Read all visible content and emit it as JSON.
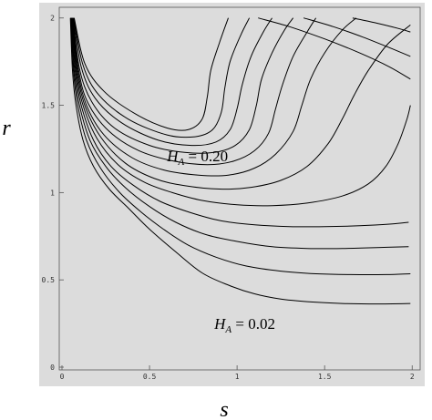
{
  "chart_data": {
    "type": "line",
    "xlabel": "s",
    "ylabel": "r",
    "xlim": [
      0,
      2.03
    ],
    "ylim": [
      0,
      2.03
    ],
    "x_ticks": [
      {
        "value": 0,
        "label": "0"
      },
      {
        "value": 0.5,
        "label": "0.5"
      },
      {
        "value": 1,
        "label": "1"
      },
      {
        "value": 1.5,
        "label": "1.5"
      },
      {
        "value": 2,
        "label": "2"
      }
    ],
    "y_ticks": [
      {
        "value": 0,
        "label": "0"
      },
      {
        "value": 0.5,
        "label": "0.5"
      },
      {
        "value": 1,
        "label": "1"
      },
      {
        "value": 1.5,
        "label": "1.5"
      },
      {
        "value": 2,
        "label": "2"
      }
    ],
    "background_color": "#dcdcdc",
    "line_color": "#000000",
    "grid": false,
    "annotations": [
      {
        "italic": "H",
        "sub": "A",
        "rest": " = 0.20",
        "x": 0.6,
        "y": 1.18
      },
      {
        "italic": "H",
        "sub": "A",
        "rest": " = 0.02",
        "x": 0.87,
        "y": 0.22
      }
    ],
    "series": [
      {
        "points": [
          [
            0.048,
            2.0
          ],
          [
            0.06,
            1.7
          ],
          [
            0.08,
            1.5
          ],
          [
            0.12,
            1.3
          ],
          [
            0.18,
            1.15
          ],
          [
            0.27,
            1.02
          ],
          [
            0.38,
            0.91
          ],
          [
            0.5,
            0.79
          ],
          [
            0.65,
            0.66
          ],
          [
            0.8,
            0.54
          ],
          [
            0.95,
            0.47
          ],
          [
            1.1,
            0.42
          ],
          [
            1.25,
            0.39
          ],
          [
            1.4,
            0.375
          ],
          [
            1.6,
            0.365
          ],
          [
            1.8,
            0.362
          ],
          [
            1.99,
            0.365
          ]
        ]
      },
      {
        "points": [
          [
            0.05,
            2.0
          ],
          [
            0.065,
            1.7
          ],
          [
            0.09,
            1.5
          ],
          [
            0.14,
            1.3
          ],
          [
            0.22,
            1.14
          ],
          [
            0.33,
            1.0
          ],
          [
            0.45,
            0.89
          ],
          [
            0.58,
            0.79
          ],
          [
            0.72,
            0.7
          ],
          [
            0.88,
            0.63
          ],
          [
            1.05,
            0.58
          ],
          [
            1.25,
            0.55
          ],
          [
            1.45,
            0.535
          ],
          [
            1.65,
            0.53
          ],
          [
            1.85,
            0.53
          ],
          [
            1.99,
            0.535
          ]
        ]
      },
      {
        "points": [
          [
            0.052,
            2.0
          ],
          [
            0.07,
            1.7
          ],
          [
            0.1,
            1.5
          ],
          [
            0.16,
            1.3
          ],
          [
            0.25,
            1.15
          ],
          [
            0.36,
            1.03
          ],
          [
            0.5,
            0.92
          ],
          [
            0.65,
            0.83
          ],
          [
            0.82,
            0.76
          ],
          [
            1.0,
            0.72
          ],
          [
            1.2,
            0.69
          ],
          [
            1.4,
            0.68
          ],
          [
            1.6,
            0.68
          ],
          [
            1.8,
            0.685
          ],
          [
            1.98,
            0.69
          ]
        ]
      },
      {
        "points": [
          [
            0.054,
            2.0
          ],
          [
            0.075,
            1.7
          ],
          [
            0.11,
            1.5
          ],
          [
            0.18,
            1.3
          ],
          [
            0.28,
            1.15
          ],
          [
            0.41,
            1.04
          ],
          [
            0.56,
            0.95
          ],
          [
            0.72,
            0.89
          ],
          [
            0.9,
            0.84
          ],
          [
            1.1,
            0.815
          ],
          [
            1.3,
            0.805
          ],
          [
            1.5,
            0.805
          ],
          [
            1.7,
            0.81
          ],
          [
            1.88,
            0.82
          ],
          [
            1.98,
            0.83
          ]
        ]
      },
      {
        "points": [
          [
            0.056,
            2.0
          ],
          [
            0.08,
            1.7
          ],
          [
            0.12,
            1.5
          ],
          [
            0.2,
            1.31
          ],
          [
            0.32,
            1.16
          ],
          [
            0.47,
            1.06
          ],
          [
            0.63,
            1.0
          ],
          [
            0.8,
            0.955
          ],
          [
            1.0,
            0.93
          ],
          [
            1.2,
            0.925
          ],
          [
            1.4,
            0.94
          ],
          [
            1.6,
            0.98
          ],
          [
            1.75,
            1.05
          ],
          [
            1.85,
            1.15
          ],
          [
            1.92,
            1.28
          ],
          [
            1.97,
            1.42
          ],
          [
            1.99,
            1.5
          ]
        ]
      },
      {
        "points": [
          [
            0.058,
            2.0
          ],
          [
            0.085,
            1.7
          ],
          [
            0.13,
            1.5
          ],
          [
            0.22,
            1.32
          ],
          [
            0.36,
            1.17
          ],
          [
            0.53,
            1.08
          ],
          [
            0.7,
            1.04
          ],
          [
            0.9,
            1.02
          ],
          [
            1.08,
            1.03
          ],
          [
            1.25,
            1.07
          ],
          [
            1.4,
            1.15
          ],
          [
            1.52,
            1.28
          ],
          [
            1.6,
            1.42
          ],
          [
            1.67,
            1.56
          ],
          [
            1.75,
            1.7
          ],
          [
            1.86,
            1.85
          ],
          [
            1.99,
            1.96
          ]
        ]
      },
      {
        "points": [
          [
            0.06,
            2.0
          ],
          [
            0.09,
            1.7
          ],
          [
            0.14,
            1.5
          ],
          [
            0.24,
            1.33
          ],
          [
            0.4,
            1.2
          ],
          [
            0.58,
            1.13
          ],
          [
            0.78,
            1.1
          ],
          [
            0.95,
            1.1
          ],
          [
            1.1,
            1.14
          ],
          [
            1.22,
            1.22
          ],
          [
            1.32,
            1.35
          ],
          [
            1.37,
            1.5
          ],
          [
            1.42,
            1.65
          ],
          [
            1.5,
            1.8
          ],
          [
            1.6,
            1.93
          ],
          [
            1.68,
            2.0
          ]
        ]
      },
      {
        "points": [
          [
            0.062,
            2.0
          ],
          [
            0.095,
            1.7
          ],
          [
            0.15,
            1.51
          ],
          [
            0.27,
            1.35
          ],
          [
            0.44,
            1.24
          ],
          [
            0.64,
            1.18
          ],
          [
            0.83,
            1.16
          ],
          [
            0.98,
            1.18
          ],
          [
            1.1,
            1.24
          ],
          [
            1.18,
            1.34
          ],
          [
            1.22,
            1.48
          ],
          [
            1.26,
            1.62
          ],
          [
            1.32,
            1.78
          ],
          [
            1.4,
            1.92
          ],
          [
            1.45,
            2.0
          ]
        ]
      },
      {
        "points": [
          [
            0.064,
            2.0
          ],
          [
            0.1,
            1.71
          ],
          [
            0.17,
            1.52
          ],
          [
            0.3,
            1.37
          ],
          [
            0.5,
            1.27
          ],
          [
            0.7,
            1.23
          ],
          [
            0.87,
            1.23
          ],
          [
            0.99,
            1.27
          ],
          [
            1.07,
            1.36
          ],
          [
            1.11,
            1.5
          ],
          [
            1.14,
            1.65
          ],
          [
            1.2,
            1.8
          ],
          [
            1.27,
            1.93
          ],
          [
            1.32,
            2.0
          ]
        ]
      },
      {
        "points": [
          [
            0.066,
            2.0
          ],
          [
            0.11,
            1.72
          ],
          [
            0.19,
            1.54
          ],
          [
            0.34,
            1.4
          ],
          [
            0.55,
            1.3
          ],
          [
            0.74,
            1.27
          ],
          [
            0.88,
            1.29
          ],
          [
            0.96,
            1.36
          ],
          [
            1.0,
            1.48
          ],
          [
            1.03,
            1.62
          ],
          [
            1.08,
            1.78
          ],
          [
            1.15,
            1.92
          ],
          [
            1.2,
            2.0
          ]
        ]
      },
      {
        "points": [
          [
            0.068,
            2.0
          ],
          [
            0.12,
            1.73
          ],
          [
            0.21,
            1.56
          ],
          [
            0.38,
            1.42
          ],
          [
            0.6,
            1.33
          ],
          [
            0.76,
            1.32
          ],
          [
            0.86,
            1.36
          ],
          [
            0.91,
            1.46
          ],
          [
            0.93,
            1.6
          ],
          [
            0.96,
            1.75
          ],
          [
            1.02,
            1.9
          ],
          [
            1.07,
            2.0
          ]
        ]
      },
      {
        "points": [
          [
            0.07,
            2.0
          ],
          [
            0.13,
            1.74
          ],
          [
            0.24,
            1.58
          ],
          [
            0.42,
            1.45
          ],
          [
            0.6,
            1.37
          ],
          [
            0.72,
            1.36
          ],
          [
            0.8,
            1.42
          ],
          [
            0.83,
            1.55
          ],
          [
            0.85,
            1.7
          ],
          [
            0.9,
            1.86
          ],
          [
            0.95,
            2.0
          ]
        ]
      },
      {
        "points": [
          [
            1.12,
            2.0
          ],
          [
            1.3,
            1.95
          ],
          [
            1.5,
            1.88
          ],
          [
            1.7,
            1.8
          ],
          [
            1.87,
            1.72
          ],
          [
            1.99,
            1.65
          ]
        ]
      },
      {
        "points": [
          [
            1.38,
            2.0
          ],
          [
            1.55,
            1.95
          ],
          [
            1.72,
            1.89
          ],
          [
            1.87,
            1.83
          ],
          [
            1.99,
            1.78
          ]
        ]
      },
      {
        "points": [
          [
            1.66,
            2.0
          ],
          [
            1.8,
            1.97
          ],
          [
            1.92,
            1.94
          ],
          [
            1.99,
            1.92
          ]
        ]
      }
    ]
  }
}
